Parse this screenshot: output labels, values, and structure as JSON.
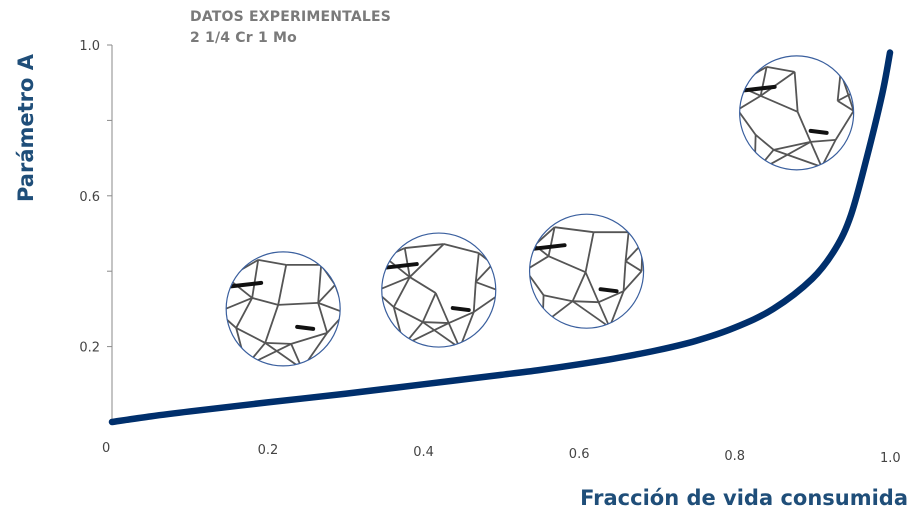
{
  "chart_data": {
    "type": "line",
    "title": "",
    "annotations": [
      "DATOS EXPERIMENTALES",
      "2 1/4 Cr 1 Mo"
    ],
    "xlabel": "Fracción de vida consumida",
    "ylabel": "Parámetro A",
    "xlim": [
      0,
      1.0
    ],
    "ylim": [
      0,
      1.0
    ],
    "x_ticks": [
      "0",
      "0.2",
      "0.4",
      "0.6",
      "0.8",
      "1.0"
    ],
    "y_ticks": [
      "0.2",
      "0.6",
      "1.0"
    ],
    "grid": false,
    "legend": "none",
    "series": [
      {
        "x": [
          0,
          0.05,
          0.1,
          0.2,
          0.3,
          0.4,
          0.5,
          0.55,
          0.6,
          0.65,
          0.7,
          0.75,
          0.8,
          0.85,
          0.9,
          0.93,
          0.95,
          0.97,
          0.99,
          1.0
        ],
        "y": [
          0,
          0.015,
          0.028,
          0.052,
          0.075,
          0.1,
          0.125,
          0.138,
          0.153,
          0.17,
          0.19,
          0.215,
          0.25,
          0.3,
          0.38,
          0.46,
          0.55,
          0.7,
          0.87,
          0.98
        ],
        "color": "#002f6c"
      }
    ],
    "micrographs": [
      {
        "x": 0.22,
        "y": 0.3
      },
      {
        "x": 0.42,
        "y": 0.35
      },
      {
        "x": 0.61,
        "y": 0.4
      },
      {
        "x": 0.88,
        "y": 0.82
      }
    ]
  },
  "colors": {
    "curve": "#002f6c",
    "axis_title": "#1f4e79",
    "annotation": "#7a7a7a",
    "micrograph_border": "#3a5f9e"
  }
}
